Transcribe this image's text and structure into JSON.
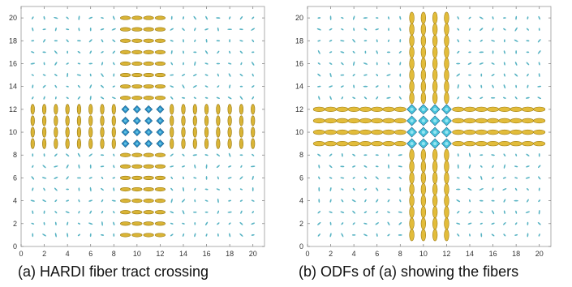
{
  "captions": {
    "a": "(a) HARDI fiber tract crossing",
    "b": "(b) ODFs of (a) showing the fibers"
  },
  "chart_data": [
    {
      "type": "scatter",
      "kind": "glyph-field",
      "caption_key": "a",
      "title": "",
      "xlabel": "",
      "ylabel": "",
      "xlim": [
        0,
        21
      ],
      "ylim": [
        0,
        21
      ],
      "xticks": [
        "0",
        "2",
        "4",
        "6",
        "8",
        "10",
        "12",
        "14",
        "16",
        "18",
        "20"
      ],
      "yticks": [
        "0",
        "2",
        "4",
        "6",
        "8",
        "10",
        "12",
        "14",
        "16",
        "18",
        "20"
      ],
      "grid": false,
      "vertical_band": {
        "x": [
          9,
          12
        ],
        "y": [
          1,
          20
        ]
      },
      "horizontal_band": {
        "x": [
          1,
          20
        ],
        "y": [
          9,
          12
        ]
      },
      "crossing_region": {
        "x": [
          9,
          12
        ],
        "y": [
          9,
          12
        ]
      },
      "colors": {
        "fiber": "#d9b436",
        "fiber_edge": "#9a7a10",
        "crossing": "#2a8ec6",
        "noise": "#3aa6b8"
      }
    },
    {
      "type": "scatter",
      "kind": "glyph-field",
      "caption_key": "b",
      "title": "",
      "xlabel": "",
      "ylabel": "",
      "xlim": [
        0,
        21
      ],
      "ylim": [
        0,
        21
      ],
      "xticks": [
        "0",
        "2",
        "4",
        "6",
        "8",
        "10",
        "12",
        "14",
        "16",
        "18",
        "20"
      ],
      "yticks": [
        "0",
        "2",
        "4",
        "6",
        "8",
        "10",
        "12",
        "14",
        "16",
        "18",
        "20"
      ],
      "grid": false,
      "vertical_band": {
        "x": [
          9,
          12
        ],
        "y": [
          1,
          20
        ]
      },
      "horizontal_band": {
        "x": [
          1,
          20
        ],
        "y": [
          9,
          12
        ]
      },
      "crossing_region": {
        "x": [
          9,
          12
        ],
        "y": [
          9,
          12
        ]
      },
      "colors": {
        "fiber": "#e2bc3a",
        "fiber_edge": "#a17f14",
        "crossing": "#48c4dc",
        "noise": "#3aa6b8"
      }
    }
  ]
}
